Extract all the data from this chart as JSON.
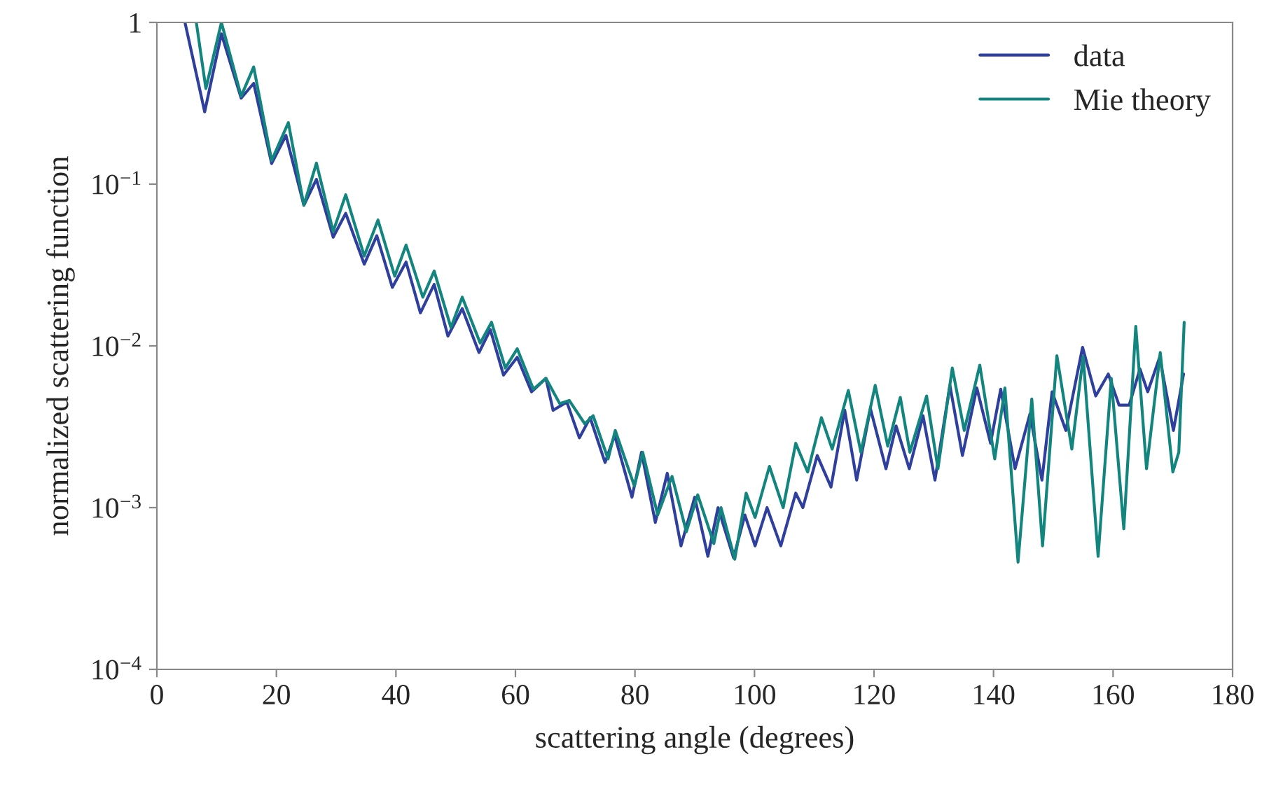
{
  "chart_data": {
    "type": "line",
    "xlabel": "scattering angle (degrees)",
    "ylabel": "normalized scattering function",
    "log": "y",
    "grid": false,
    "legend": "top right",
    "line_style": "solid",
    "marker": "none",
    "xlim": [
      0,
      180
    ],
    "xticks": [
      0,
      20,
      40,
      60,
      80,
      100,
      120,
      140,
      160,
      180
    ],
    "ylim": [
      0.0001,
      1
    ],
    "yticks": [
      {
        "value": 0.0001,
        "label": "10$^{−4}$"
      },
      {
        "value": 0.001,
        "label": "10$^{−3}$"
      },
      {
        "value": 0.01,
        "label": "10$^{−2}$"
      },
      {
        "value": 0.1,
        "label": "10$^{−1}$"
      },
      1
    ],
    "series": [
      {
        "name": "data",
        "color": "#2e3f9e",
        "x": [
          4.7,
          8.0,
          10.8,
          14.1,
          16.2,
          19.2,
          21.6,
          24.6,
          26.7,
          29.5,
          31.6,
          34.7,
          36.8,
          39.4,
          41.7,
          44.1,
          46.4,
          48.7,
          51.1,
          53.9,
          55.8,
          58.0,
          60.3,
          62.7,
          65.1,
          66.3,
          68.6,
          70.7,
          72.5,
          75.0,
          76.6,
          79.5,
          81.1,
          83.4,
          85.4,
          87.7,
          90.0,
          92.2,
          93.9,
          96.5,
          98.4,
          100.1,
          102.1,
          104.4,
          106.9,
          108.1,
          110.5,
          112.8,
          115.1,
          117.1,
          119.4,
          122.0,
          123.7,
          125.9,
          128.2,
          130.2,
          132.7,
          134.8,
          137.2,
          139.5,
          141.2,
          143.6,
          146.1,
          148.1,
          149.8,
          152.1,
          154.9,
          157.1,
          159.2,
          161.0,
          162.7,
          164.5,
          165.8,
          167.8,
          170.1,
          171.8
        ],
        "values": [
          1.0,
          0.28,
          0.85,
          0.34,
          0.42,
          0.134,
          0.2,
          0.074,
          0.107,
          0.047,
          0.066,
          0.032,
          0.048,
          0.023,
          0.033,
          0.016,
          0.024,
          0.0115,
          0.017,
          0.0091,
          0.0126,
          0.0066,
          0.0085,
          0.0052,
          0.0063,
          0.004,
          0.0045,
          0.0027,
          0.0036,
          0.0019,
          0.0028,
          0.00116,
          0.0022,
          0.00081,
          0.00163,
          0.00058,
          0.00116,
          0.0005,
          0.001,
          0.00049,
          0.0009,
          0.00058,
          0.001,
          0.00058,
          0.00123,
          0.001,
          0.0021,
          0.00134,
          0.004,
          0.00148,
          0.0041,
          0.00174,
          0.0032,
          0.00174,
          0.0037,
          0.00148,
          0.0057,
          0.0021,
          0.0055,
          0.0025,
          0.0054,
          0.00174,
          0.0038,
          0.00148,
          0.0052,
          0.003,
          0.0098,
          0.0049,
          0.0067,
          0.0043,
          0.0043,
          0.0072,
          0.0052,
          0.0085,
          0.003,
          0.0067
        ]
      },
      {
        "name": "Mie theory",
        "color": "#13857f",
        "x": [
          6.6,
          8.2,
          10.8,
          14.1,
          16.2,
          19.2,
          22.0,
          24.6,
          26.7,
          29.5,
          31.6,
          34.7,
          37.0,
          39.8,
          41.7,
          44.5,
          46.4,
          49.2,
          51.1,
          54.1,
          56.0,
          58.3,
          60.3,
          63.0,
          65.1,
          67.4,
          69.0,
          71.6,
          73.0,
          75.5,
          76.7,
          79.9,
          81.3,
          83.8,
          86.2,
          88.6,
          90.5,
          93.2,
          94.4,
          96.7,
          98.6,
          100.1,
          102.5,
          104.8,
          106.9,
          108.9,
          111.2,
          113.0,
          115.7,
          117.8,
          120.2,
          122.3,
          124.4,
          126.0,
          128.8,
          130.7,
          133.1,
          135.1,
          137.7,
          140.2,
          141.9,
          144.1,
          146.4,
          148.2,
          150.6,
          153.1,
          155.0,
          157.5,
          159.7,
          161.8,
          163.8,
          165.6,
          167.9,
          170.0,
          171.0,
          171.9
        ],
        "values": [
          1.0,
          0.39,
          1.0,
          0.35,
          0.53,
          0.14,
          0.24,
          0.074,
          0.135,
          0.051,
          0.086,
          0.036,
          0.06,
          0.027,
          0.042,
          0.02,
          0.029,
          0.013,
          0.02,
          0.0104,
          0.014,
          0.0073,
          0.0096,
          0.0054,
          0.0063,
          0.0044,
          0.0046,
          0.0033,
          0.0037,
          0.002,
          0.003,
          0.00136,
          0.0022,
          0.0009,
          0.00156,
          0.00071,
          0.0012,
          0.0006,
          0.001,
          0.00048,
          0.00123,
          0.00087,
          0.0018,
          0.001,
          0.0025,
          0.00166,
          0.0036,
          0.0023,
          0.0053,
          0.0022,
          0.0057,
          0.0024,
          0.0048,
          0.0022,
          0.0049,
          0.00174,
          0.0073,
          0.003,
          0.0076,
          0.002,
          0.0055,
          0.00046,
          0.0047,
          0.00058,
          0.0087,
          0.0023,
          0.0086,
          0.0005,
          0.0063,
          0.00074,
          0.0132,
          0.00174,
          0.0091,
          0.00166,
          0.0022,
          0.014
        ]
      }
    ]
  }
}
